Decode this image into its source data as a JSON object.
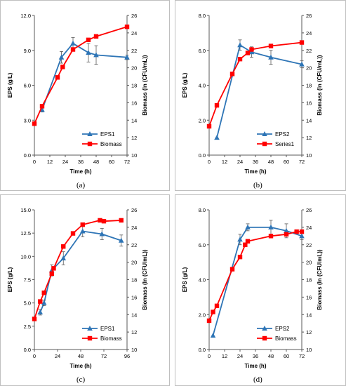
{
  "panel_labels": [
    "(a)",
    "(b)",
    "(c)",
    "(d)"
  ],
  "chart_data": [
    {
      "type": "line",
      "panel": "(a)",
      "xlabel": "Time (h)",
      "ylabel": "EPS (g/L)",
      "y2label": "Biomass (ln (CFU/mL))",
      "xlim": [
        0,
        72
      ],
      "xticks": [
        0,
        12,
        24,
        36,
        48,
        60,
        72
      ],
      "ylim": [
        0,
        12
      ],
      "yticks": [
        0.0,
        3.0,
        6.0,
        9.0,
        12.0
      ],
      "ytick_decimals": 1,
      "y2lim": [
        10,
        26
      ],
      "y2ticks": [
        10,
        12,
        14,
        16,
        18,
        20,
        22,
        24,
        26
      ],
      "legend_position": "lower-right",
      "series": [
        {
          "name": "EPS1",
          "axis": "left",
          "color": "#2e75b6",
          "marker": "triangle",
          "x": [
            6,
            21,
            30,
            42,
            48,
            72
          ],
          "y": [
            3.9,
            8.4,
            9.6,
            8.8,
            8.6,
            8.4
          ],
          "err": [
            0.2,
            0.5,
            0.5,
            0.8,
            0.8,
            0.2
          ]
        },
        {
          "name": "Biomass",
          "axis": "right",
          "color": "#ff0000",
          "marker": "square",
          "x": [
            0,
            6,
            18,
            22,
            30,
            42,
            48,
            72
          ],
          "y": [
            13.6,
            15.6,
            18.9,
            20.1,
            22.1,
            23.2,
            23.6,
            24.7
          ]
        }
      ]
    },
    {
      "type": "line",
      "panel": "(b)",
      "xlabel": "Time (h)",
      "ylabel": "EPS (g/L)",
      "y2label": "Biomass (ln (CFU/mL))",
      "xlim": [
        0,
        72
      ],
      "xticks": [
        0,
        12,
        24,
        36,
        48,
        60,
        72
      ],
      "ylim": [
        0,
        8
      ],
      "yticks": [
        0.0,
        2.0,
        4.0,
        6.0,
        8.0
      ],
      "ytick_decimals": 1,
      "y2lim": [
        10,
        26
      ],
      "y2ticks": [
        10,
        12,
        14,
        16,
        18,
        20,
        22,
        24,
        26
      ],
      "legend_position": "lower-right",
      "series": [
        {
          "name": "EPS2",
          "axis": "left",
          "color": "#2e75b6",
          "marker": "triangle",
          "x": [
            6,
            24,
            33,
            48,
            72
          ],
          "y": [
            1.0,
            6.3,
            5.9,
            5.6,
            5.2
          ],
          "err": [
            0.0,
            0.3,
            0.3,
            0.4,
            0.2
          ]
        },
        {
          "name": "Series1",
          "axis": "right",
          "color": "#ff0000",
          "marker": "square",
          "x": [
            0,
            6,
            18,
            24,
            30,
            33,
            48,
            72
          ],
          "y": [
            13.3,
            15.7,
            19.3,
            21.0,
            21.7,
            22.1,
            22.5,
            22.9
          ]
        }
      ]
    },
    {
      "type": "line",
      "panel": "(c)",
      "xlabel": "Time (h)",
      "ylabel": "EPS (g/L)",
      "y2label": "Biomass (ln (CFU/mL))",
      "xlim": [
        0,
        96
      ],
      "xticks": [
        0,
        24,
        48,
        72,
        96
      ],
      "ylim": [
        0,
        15
      ],
      "yticks": [
        0.0,
        2.5,
        5.0,
        7.5,
        10.0,
        12.5,
        15.0
      ],
      "ytick_decimals": 1,
      "y2lim": [
        10,
        26
      ],
      "y2ticks": [
        10,
        12,
        14,
        16,
        18,
        20,
        22,
        24,
        26
      ],
      "legend_position": "lower-right",
      "series": [
        {
          "name": "EPS1",
          "axis": "left",
          "color": "#2e75b6",
          "marker": "triangle",
          "x": [
            6,
            10,
            18,
            30,
            50,
            70,
            90
          ],
          "y": [
            4.0,
            5.0,
            8.5,
            9.8,
            12.7,
            12.4,
            11.7
          ],
          "err": [
            0.3,
            0.3,
            0.6,
            0.7,
            0.6,
            0.6,
            0.6
          ]
        },
        {
          "name": "Biomass",
          "axis": "right",
          "color": "#ff0000",
          "marker": "square",
          "x": [
            0,
            6,
            10,
            18,
            20,
            30,
            40,
            50,
            68,
            72,
            90
          ],
          "y": [
            13.5,
            15.5,
            16.5,
            18.7,
            19.3,
            21.8,
            23.3,
            24.3,
            24.8,
            24.7,
            24.8
          ]
        }
      ]
    },
    {
      "type": "line",
      "panel": "(d)",
      "xlabel": "Time (h)",
      "ylabel": "EPS (g/L)",
      "y2label": "Biomass (ln (CFU/mL))",
      "xlim": [
        0,
        72
      ],
      "xticks": [
        0,
        12,
        24,
        36,
        48,
        60,
        72
      ],
      "ylim": [
        0,
        8
      ],
      "yticks": [
        0.0,
        2.0,
        4.0,
        6.0,
        8.0
      ],
      "ytick_decimals": 1,
      "y2lim": [
        10,
        26
      ],
      "y2ticks": [
        10,
        12,
        14,
        16,
        18,
        20,
        22,
        24,
        26
      ],
      "legend_position": "lower-right",
      "series": [
        {
          "name": "EPS2",
          "axis": "left",
          "color": "#2e75b6",
          "marker": "triangle",
          "x": [
            3,
            24,
            30,
            48,
            60,
            72
          ],
          "y": [
            0.8,
            6.3,
            7.0,
            7.0,
            6.8,
            6.5
          ],
          "err": [
            0.0,
            0.3,
            0.2,
            0.4,
            0.4,
            0.2
          ]
        },
        {
          "name": "Biomass",
          "axis": "right",
          "color": "#ff0000",
          "marker": "square",
          "x": [
            0,
            3,
            6,
            18,
            24,
            28,
            30,
            48,
            60,
            68,
            72
          ],
          "y": [
            13.3,
            14.3,
            15.0,
            19.2,
            20.6,
            22.0,
            22.4,
            23.0,
            23.2,
            23.5,
            23.5
          ]
        }
      ]
    }
  ]
}
